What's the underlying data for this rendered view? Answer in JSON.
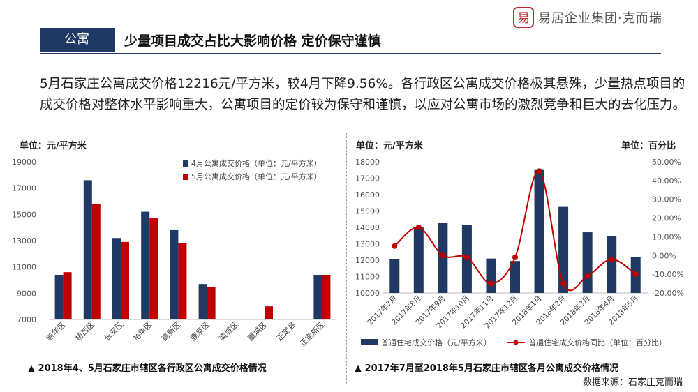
{
  "header": {
    "logo_char": "易",
    "logo_text": "易居企业集团·克而瑞",
    "tag": "公寓",
    "title": "少量项目成交占比大影响价格 定价保守谨慎"
  },
  "paragraph": {
    "line1": "5月石家庄公寓成交价格12216元/平方米，较4月下降9.56%。各行政区公寓成交价格极其悬殊，少量热点项目的",
    "line2": "成交价格对整体水平影响重大，公寓项目的定价较为保守和谨慎，以应对公寓市场的激烈竞争和巨大的去化压力。"
  },
  "chart_data": [
    {
      "type": "bar",
      "unit_label": "单位：元/平方米",
      "caption": "▲ 2018年4、5月石家庄市辖区各行政区公寓成交价格情况",
      "categories": [
        "新华区",
        "桥西区",
        "长安区",
        "裕华区",
        "高新区",
        "鹿泉区",
        "栾城区",
        "藁城区",
        "正定县",
        "正定新区"
      ],
      "ylim": [
        7000,
        19000
      ],
      "yticks": [
        7000,
        9000,
        11000,
        13000,
        15000,
        17000,
        19000
      ],
      "legend_position": "top-right",
      "series": [
        {
          "name": "4月公寓成交价格（单位：元/平方米）",
          "color": "#1f3864",
          "values": [
            10400,
            17600,
            13200,
            15200,
            13800,
            9700,
            null,
            null,
            null,
            10400
          ]
        },
        {
          "name": "5月公寓成交价格（单位：元/平方米）",
          "color": "#c00000",
          "values": [
            10600,
            15800,
            12900,
            14700,
            12800,
            9500,
            null,
            8000,
            null,
            10400
          ]
        }
      ]
    },
    {
      "type": "bar+line",
      "unit_label_left": "单位：元/平方米",
      "unit_label_right": "单位：百分比",
      "caption": "▲ 2017年7月至2018年5月石家庄市辖区各月公寓成交价格情况",
      "categories": [
        "2017年7月",
        "2017年8月",
        "2017年9月",
        "2017年10月",
        "2017年11月",
        "2017年12月",
        "2018年1月",
        "2018年2月",
        "2018年3月",
        "2018年4月",
        "2018年5月"
      ],
      "ylim_left": [
        10000,
        18000
      ],
      "yticks_left": [
        10000,
        11000,
        12000,
        13000,
        14000,
        15000,
        16000,
        17000,
        18000
      ],
      "ylim_right": [
        -0.2,
        0.5
      ],
      "yticks_right": [
        "-20.00%",
        "-10.00%",
        "0.00%",
        "10.00%",
        "20.00%",
        "30.00%",
        "40.00%",
        "50.00%"
      ],
      "legend_position": "bottom",
      "bar_series": {
        "name": "普通住宅成交价格（元/平方米）",
        "color": "#1f3864",
        "values": [
          12050,
          14000,
          14300,
          14150,
          12100,
          11950,
          17500,
          15250,
          13700,
          13450,
          12200
        ]
      },
      "line_series": {
        "name": "普通住宅成交价格同比（单位：百分比）",
        "color": "#c00000",
        "values": [
          0.05,
          0.15,
          0.0,
          -0.01,
          -0.15,
          -0.01,
          0.45,
          -0.15,
          -0.11,
          -0.02,
          -0.1
        ]
      }
    }
  ],
  "source": "数据来源：石家庄克而瑞"
}
